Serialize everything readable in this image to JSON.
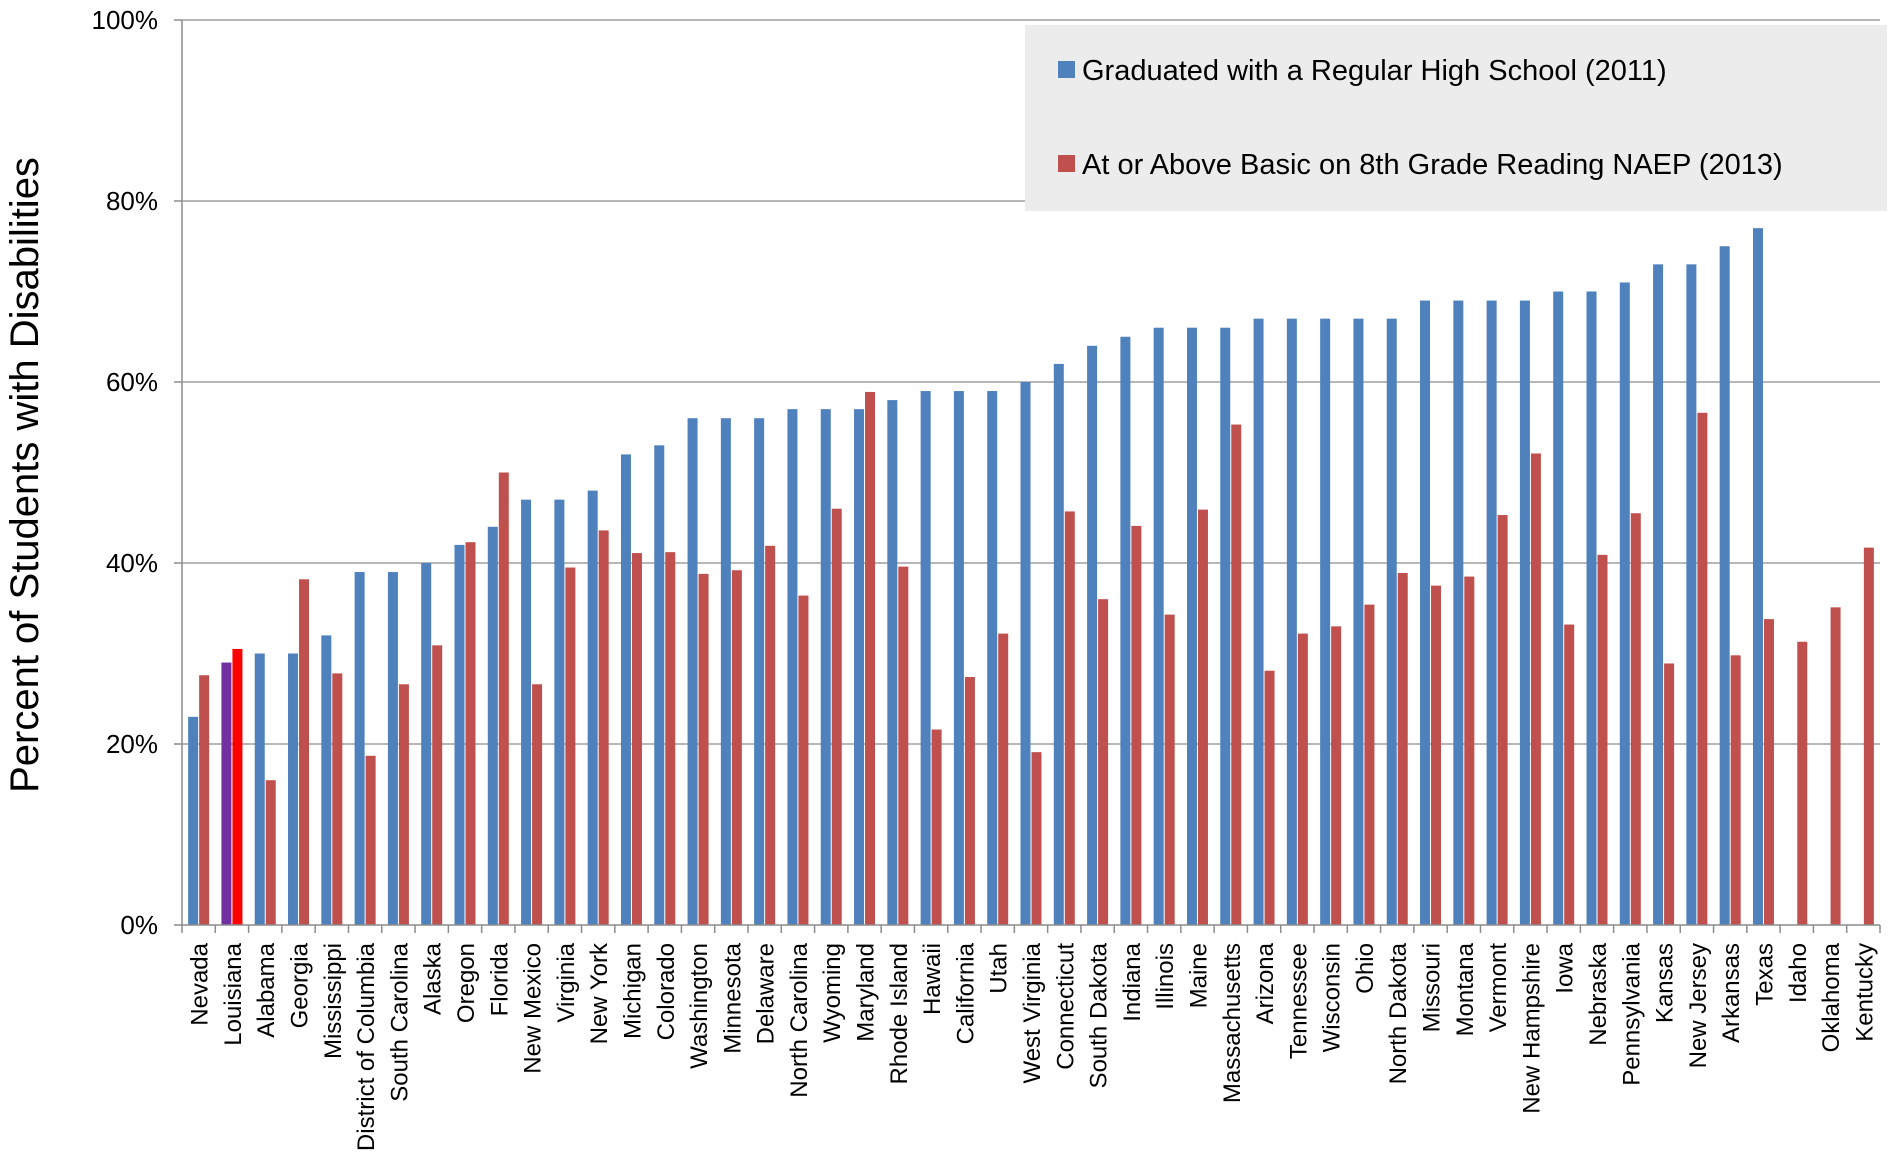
{
  "chart_data": {
    "type": "bar",
    "ylabel": "Percent of Students with Disabilities",
    "ylim": [
      0,
      100
    ],
    "yticks": [
      "0%",
      "20%",
      "40%",
      "60%",
      "80%",
      "100%"
    ],
    "grid": true,
    "legend_position": "top-right",
    "categories": [
      "Nevada",
      "Louisiana",
      "Alabama",
      "Georgia",
      "Mississippi",
      "District of Columbia",
      "South Carolina",
      "Alaska",
      "Oregon",
      "Florida",
      "New Mexico",
      "Virginia",
      "New York",
      "Michigan",
      "Colorado",
      "Washington",
      "Minnesota",
      "Delaware",
      "North Carolina",
      "Wyoming",
      "Maryland",
      "Rhode Island",
      "Hawaii",
      "California",
      "Utah",
      "West Virginia",
      "Connecticut",
      "South Dakota",
      "Indiana",
      "Illinois",
      "Maine",
      "Massachusetts",
      "Arizona",
      "Tennessee",
      "Wisconsin",
      "Ohio",
      "North Dakota",
      "Missouri",
      "Montana",
      "Vermont",
      "New Hampshire",
      "Iowa",
      "Nebraska",
      "Pennsylvania",
      "Kansas",
      "New Jersey",
      "Arkansas",
      "Texas",
      "Idaho",
      "Oklahoma",
      "Kentucky"
    ],
    "series": [
      {
        "name": "Graduated with a Regular High School (2011)",
        "color": "#4f81bd",
        "values": [
          23,
          29,
          30,
          30,
          32,
          39,
          39,
          40,
          42,
          44,
          47,
          47,
          48,
          52,
          53,
          56,
          56,
          56,
          57,
          57,
          57,
          58,
          59,
          59,
          59,
          60,
          62,
          64,
          65,
          66,
          66,
          66,
          67,
          67,
          67,
          67,
          67,
          69,
          69,
          69,
          69,
          70,
          70,
          71,
          73,
          73,
          75,
          77,
          null,
          null,
          null
        ]
      },
      {
        "name": "At or Above Basic on 8th Grade Reading NAEP (2013)",
        "color": "#c0504d",
        "values": [
          27.6,
          30.5,
          16,
          38.2,
          27.8,
          18.7,
          26.6,
          30.9,
          42.3,
          50,
          26.6,
          39.5,
          43.6,
          41.1,
          41.2,
          38.8,
          39.2,
          41.9,
          36.4,
          46,
          58.9,
          39.6,
          21.6,
          27.4,
          32.2,
          19.1,
          45.7,
          36,
          44.1,
          34.3,
          45.9,
          55.3,
          28.1,
          32.2,
          33,
          35.4,
          38.9,
          37.5,
          38.5,
          45.3,
          52.1,
          33.2,
          40.9,
          45.5,
          28.9,
          56.6,
          29.8,
          33.8,
          31.3,
          35.1,
          41.7
        ]
      }
    ],
    "highlight": {
      "category": "Louisiana",
      "colors": [
        "#7030a0",
        "#ff0000"
      ]
    }
  }
}
